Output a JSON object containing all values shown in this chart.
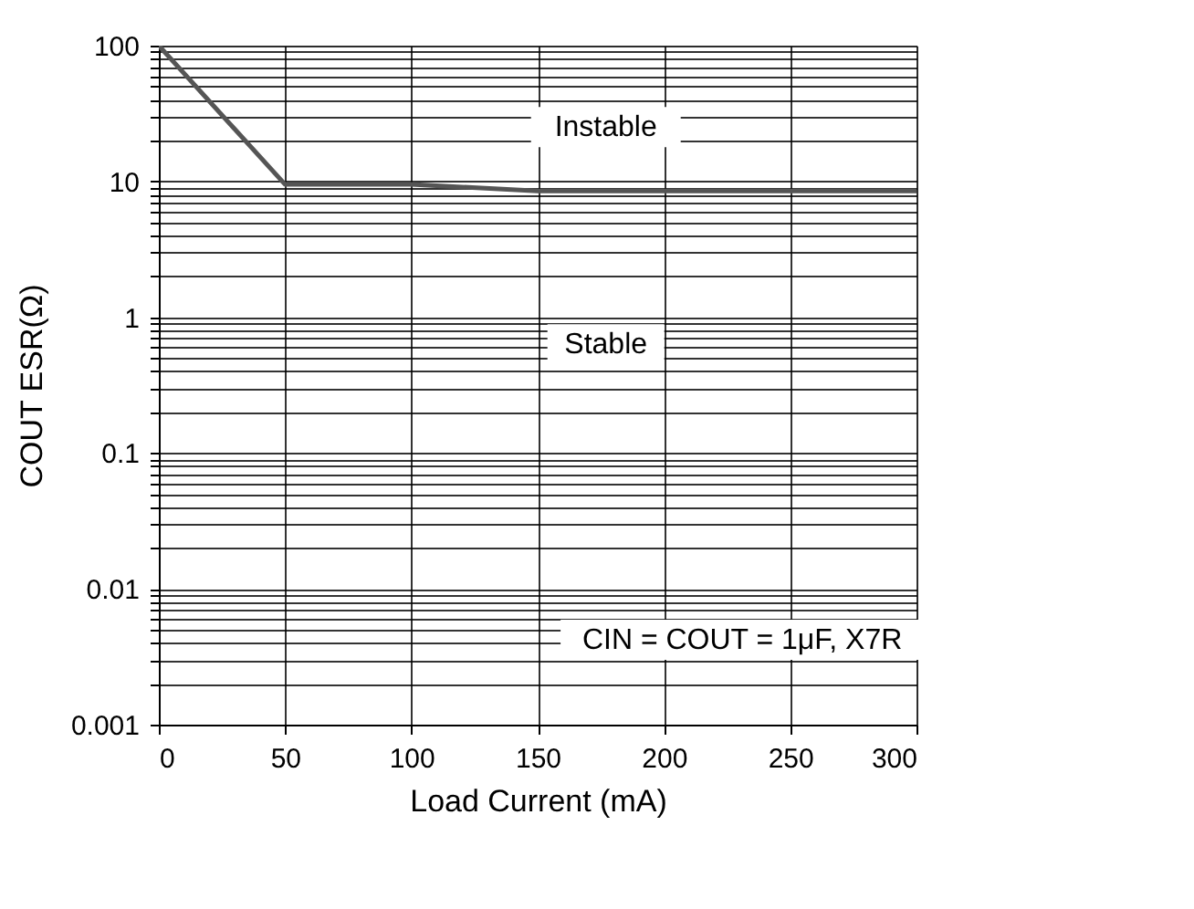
{
  "chart_data": {
    "type": "line",
    "xlabel": "Load Current (mA)",
    "ylabel": "COUT ESR(Ω)",
    "x": [
      0,
      50,
      100,
      150,
      300
    ],
    "series": [
      {
        "color": "#555555",
        "values": [
          100,
          9.5,
          9.5,
          8.5,
          8.5
        ]
      }
    ],
    "log": "y",
    "grid": true,
    "marker": "none",
    "line_style": "solid",
    "xlim": [
      0,
      300
    ],
    "xticks": [
      0,
      50,
      100,
      150,
      200,
      250,
      300
    ],
    "ylim": [
      0.001,
      100
    ],
    "yticks": [
      0.001,
      {
        "value": 0.002,
        "label": null
      },
      {
        "value": 0.003,
        "label": null
      },
      {
        "value": 0.004,
        "label": null
      },
      {
        "value": 0.005,
        "label": null
      },
      {
        "value": 0.006,
        "label": null
      },
      {
        "value": 0.007,
        "label": null
      },
      {
        "value": 0.008,
        "label": null
      },
      {
        "value": 0.009,
        "label": null
      },
      0.01,
      {
        "value": 0.02,
        "label": null
      },
      {
        "value": 0.03,
        "label": null
      },
      {
        "value": 0.04,
        "label": null
      },
      {
        "value": 0.05,
        "label": null
      },
      {
        "value": 0.06,
        "label": null
      },
      {
        "value": 0.07,
        "label": null
      },
      {
        "value": 0.08,
        "label": null
      },
      {
        "value": 0.09,
        "label": null
      },
      0.1,
      {
        "value": 0.2,
        "label": null
      },
      {
        "value": 0.3,
        "label": null
      },
      {
        "value": 0.4,
        "label": null
      },
      {
        "value": 0.5,
        "label": null
      },
      {
        "value": 0.6,
        "label": null
      },
      {
        "value": 0.7,
        "label": null
      },
      {
        "value": 0.8,
        "label": null
      },
      {
        "value": 0.9,
        "label": null
      },
      1,
      {
        "value": 2,
        "label": null
      },
      {
        "value": 3,
        "label": null
      },
      {
        "value": 4,
        "label": null
      },
      {
        "value": 5,
        "label": null
      },
      {
        "value": 6,
        "label": null
      },
      {
        "value": 7,
        "label": null
      },
      {
        "value": 8,
        "label": null
      },
      {
        "value": 9,
        "label": null
      },
      10,
      {
        "value": 20,
        "label": null
      },
      {
        "value": 30,
        "label": null
      },
      {
        "value": 40,
        "label": null
      },
      {
        "value": 50,
        "label": null
      },
      {
        "value": 60,
        "label": null
      },
      {
        "value": 70,
        "label": null
      },
      {
        "value": 80,
        "label": null
      },
      {
        "value": 90,
        "label": null
      },
      100
    ],
    "annotations": [
      "Instable",
      "Stable",
      "CIN = COUT = 1μF, X7R"
    ]
  }
}
